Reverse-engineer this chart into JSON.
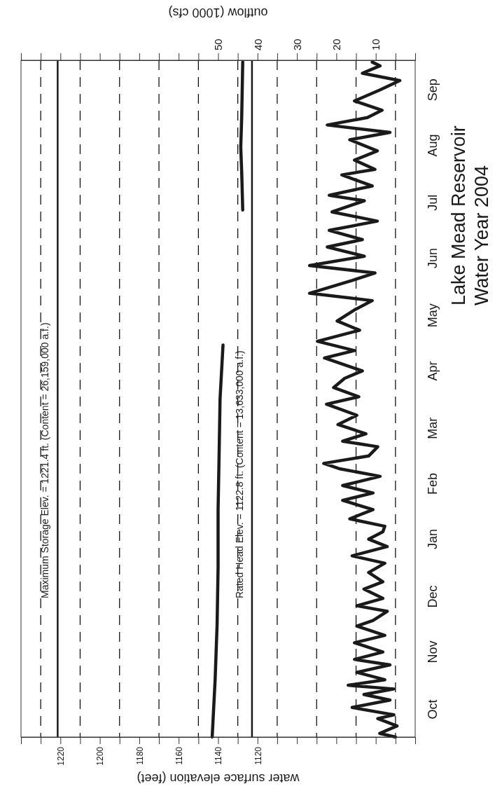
{
  "chart_data": {
    "type": "line",
    "orientation": "horizontal",
    "title": "Lake Mead Reservoir",
    "subtitle": "Water Year 2004",
    "xlabel": "water surface elevation (feet)",
    "x2label": "outflow (1000 cfs)",
    "ylim": [
      "2003-10-01",
      "2004-10-01"
    ],
    "yticks": [
      {
        "value": "2003-10-16",
        "label": "Oct"
      },
      {
        "value": "2003-11-16",
        "label": "Nov"
      },
      {
        "value": "2003-12-16",
        "label": "Dec"
      },
      {
        "value": "2004-01-16",
        "label": "Jan"
      },
      {
        "value": "2004-02-15",
        "label": "Feb"
      },
      {
        "value": "2004-03-16",
        "label": "Mar"
      },
      {
        "value": "2004-04-16",
        "label": "Apr"
      },
      {
        "value": "2004-05-16",
        "label": "May"
      },
      {
        "value": "2004-06-16",
        "label": "Jun"
      },
      {
        "value": "2004-07-16",
        "label": "Jul"
      },
      {
        "value": "2004-08-16",
        "label": "Aug"
      },
      {
        "value": "2004-09-15",
        "label": "Sep"
      }
    ],
    "xlim": [
      1240,
      1040
    ],
    "xticks": [
      {
        "value": 1240,
        "label": null
      },
      {
        "value": 1230,
        "label": null
      },
      1220,
      {
        "value": 1210,
        "label": null
      },
      1200,
      {
        "value": 1190,
        "label": null
      },
      1180,
      {
        "value": 1170,
        "label": null
      },
      1160,
      {
        "value": 1150,
        "label": null
      },
      1140,
      {
        "value": 1130,
        "label": null
      },
      1120,
      {
        "value": 1110,
        "label": null
      },
      {
        "value": 1100,
        "label": null
      },
      {
        "value": 1090,
        "label": null
      },
      {
        "value": 1080,
        "label": null
      },
      {
        "value": 1070,
        "label": null
      },
      {
        "value": 1060,
        "label": null
      },
      {
        "value": 1050,
        "label": null
      },
      {
        "value": 1040,
        "label": null
      }
    ],
    "x2lim": [
      100,
      0
    ],
    "x2ticks": [
      {
        "value": 100,
        "label": null
      },
      {
        "value": 95,
        "label": null
      },
      {
        "value": 90,
        "label": null
      },
      {
        "value": 85,
        "label": null
      },
      {
        "value": 80,
        "label": null
      },
      {
        "value": 75,
        "label": null
      },
      {
        "value": 70,
        "label": null
      },
      {
        "value": 65,
        "label": null
      },
      {
        "value": 60,
        "label": null
      },
      {
        "value": 55,
        "label": null
      },
      50,
      {
        "value": 45,
        "label": null
      },
      40,
      {
        "value": 35,
        "label": null
      },
      30,
      {
        "value": 25,
        "label": null
      },
      20,
      {
        "value": 15,
        "label": null
      },
      10,
      {
        "value": 5,
        "label": null
      },
      {
        "value": 0,
        "label": null
      }
    ],
    "line_style": "solid",
    "ref_lines": [
      {
        "axis": "x",
        "value": 1230,
        "color": "#000000",
        "line_style": "dashed"
      },
      {
        "axis": "x",
        "value": 1210,
        "color": "#000000",
        "line_style": "dashed"
      },
      {
        "axis": "x",
        "value": 1190,
        "color": "#000000",
        "line_style": "dashed"
      },
      {
        "axis": "x",
        "value": 1170,
        "color": "#000000",
        "line_style": "dashed"
      },
      {
        "axis": "x",
        "value": 1150,
        "color": "#000000",
        "line_style": "dashed"
      },
      {
        "axis": "x",
        "value": 1130,
        "color": "#000000",
        "line_style": "dashed"
      },
      {
        "axis": "x",
        "value": 1110,
        "color": "#000000",
        "line_style": "dashed"
      },
      {
        "axis": "x",
        "value": 1090,
        "color": "#000000",
        "line_style": "dashed"
      },
      {
        "axis": "x",
        "value": 1070,
        "color": "#000000",
        "line_style": "dashed"
      },
      {
        "axis": "x",
        "value": 1050,
        "color": "#000000",
        "line_style": "dashed"
      },
      {
        "axis": "x",
        "value": 1221.4,
        "label": "Maximum Storage Elev. = 1221.4 ft. (Content = 26,159,000 a.f.)",
        "color": "#1a1a1a",
        "line_style": "solid"
      },
      {
        "axis": "x",
        "value": 1122.8,
        "label": "Rated Head Elev. = 1122.8 ft. (Content = 13,633,000 a.f.)",
        "color": "#1a1a1a",
        "line_style": "solid"
      }
    ],
    "series": [
      {
        "color": "#1a1a1a",
        "x": [
          "2003-10-01",
          "2003-11-01",
          "2003-12-01",
          "2004-01-01",
          "2004-02-01",
          "2004-03-01",
          "2004-04-01",
          "2004-04-30",
          "2004-05-01",
          "2004-07-12",
          "2004-08-01",
          "2004-08-15",
          "2004-09-01",
          "2004-09-30"
        ],
        "values": [
          1143,
          1141.5,
          1140.5,
          1140,
          1140,
          1139.5,
          1139,
          1137.5,
          null,
          1127.5,
          1128,
          1128.5,
          1128,
          1127.5
        ]
      },
      {
        "color": "#1a1a1a",
        "axis": "x2",
        "x": [
          "2003-10-01",
          "2003-10-03",
          "2003-10-07",
          "2003-10-11",
          "2003-10-13",
          "2003-10-17",
          "2003-10-21",
          "2003-10-24",
          "2003-10-27",
          "2003-10-29",
          "2003-11-01",
          "2003-11-05",
          "2003-11-09",
          "2003-11-12",
          "2003-11-16",
          "2003-11-21",
          "2003-11-25",
          "2003-11-30",
          "2003-12-03",
          "2003-12-08",
          "2003-12-11",
          "2003-12-15",
          "2003-12-20",
          "2003-12-24",
          "2003-12-29",
          "2004-01-03",
          "2004-01-07",
          "2004-01-12",
          "2004-01-16",
          "2004-01-20",
          "2004-01-23",
          "2004-01-27",
          "2004-02-01",
          "2004-02-06",
          "2004-02-10",
          "2004-02-14",
          "2004-02-19",
          "2004-02-23",
          "2004-02-26",
          "2004-03-01",
          "2004-03-06",
          "2004-03-09",
          "2004-03-13",
          "2004-03-18",
          "2004-03-23",
          "2004-03-29",
          "2004-04-02",
          "2004-04-07",
          "2004-04-12",
          "2004-04-16",
          "2004-04-23",
          "2004-04-27",
          "2004-05-02",
          "2004-05-08",
          "2004-05-13",
          "2004-05-19",
          "2004-05-24",
          "2004-05-28",
          "2004-06-04",
          "2004-06-08",
          "2004-06-12",
          "2004-06-17",
          "2004-06-22",
          "2004-06-26",
          "2004-07-01",
          "2004-07-06",
          "2004-07-11",
          "2004-07-17",
          "2004-07-20",
          "2004-07-25",
          "2004-07-31",
          "2004-08-03",
          "2004-08-08",
          "2004-08-13",
          "2004-08-19",
          "2004-08-23",
          "2004-08-27",
          "2004-08-31",
          "2004-09-04",
          "2004-09-09",
          "2004-09-15",
          "2004-09-20",
          "2004-09-24",
          "2004-09-28",
          "2004-09-30"
        ],
        "values": [
          5,
          9,
          4.6,
          9.5,
          5.4,
          16,
          6.4,
          13,
          5.4,
          17,
          7.7,
          14.8,
          6.4,
          15.4,
          8.2,
          15.4,
          7.7,
          14.8,
          10.7,
          7.1,
          14.8,
          8.2,
          13,
          8.2,
          11.8,
          7.7,
          16,
          7.1,
          11.8,
          8.2,
          7.7,
          16.6,
          10.7,
          18.4,
          10.7,
          18.4,
          8.9,
          19,
          23.2,
          11.8,
          9.5,
          18.4,
          12.5,
          19.6,
          14.8,
          22.5,
          14.3,
          20.7,
          17.9,
          13.4,
          23,
          15.4,
          24.8,
          14.1,
          19.8,
          15.4,
          10.9,
          26.8,
          15.9,
          10.2,
          26.8,
          12.9,
          22.3,
          13.4,
          21.8,
          9.6,
          21.1,
          12.9,
          21.8,
          10.9,
          18.6,
          10.2,
          15.4,
          9.6,
          16.6,
          6.4,
          22.3,
          12.1,
          8.4,
          15.4,
          8.9,
          3.9,
          13.4,
          8.9,
          10.9
        ]
      }
    ]
  }
}
